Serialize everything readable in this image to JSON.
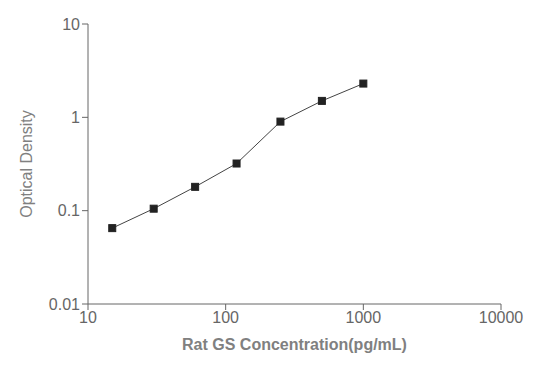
{
  "chart_data": {
    "type": "line",
    "x": [
      15,
      30,
      60,
      120,
      250,
      500,
      1000
    ],
    "values": [
      0.065,
      0.105,
      0.18,
      0.32,
      0.9,
      1.5,
      2.3
    ],
    "xlabel": "Rat GS Concentration(pg/mL)",
    "ylabel": "Optical Density",
    "xlim": [
      10,
      10000
    ],
    "ylim": [
      0.01,
      10
    ],
    "xticks": [
      10,
      100,
      1000,
      10000
    ],
    "yticks": [
      0.01,
      0.1,
      1,
      10
    ],
    "log": true,
    "grid": false,
    "color": "#444444",
    "marker": "square"
  }
}
